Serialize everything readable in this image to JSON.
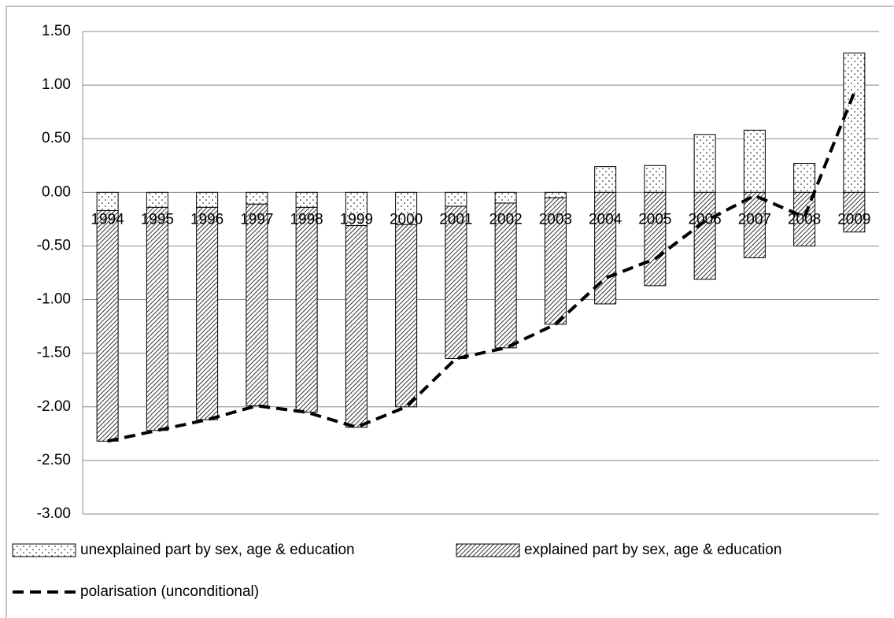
{
  "chart_data": {
    "type": "bar",
    "categories": [
      "1994",
      "1995",
      "1996",
      "1997",
      "1998",
      "1999",
      "2000",
      "2001",
      "2002",
      "2003",
      "2004",
      "2005",
      "2006",
      "2007",
      "2008",
      "2009"
    ],
    "series": [
      {
        "name": "unexplained part by sex, age & education",
        "type": "bar",
        "pattern": "dots",
        "color": "#000000",
        "values": [
          -0.17,
          -0.14,
          -0.14,
          -0.11,
          -0.14,
          -0.31,
          -0.3,
          -0.13,
          -0.1,
          -0.05,
          0.24,
          0.25,
          0.54,
          0.58,
          0.27,
          1.3
        ]
      },
      {
        "name": "explained part by sex, age & education",
        "type": "bar",
        "pattern": "hatch",
        "color": "#000000",
        "values": [
          -2.15,
          -2.08,
          -1.98,
          -1.88,
          -1.91,
          -1.88,
          -1.7,
          -1.42,
          -1.35,
          -1.18,
          -1.04,
          -0.87,
          -0.81,
          -0.61,
          -0.5,
          -0.37
        ]
      },
      {
        "name": "polarisation (unconditional)",
        "type": "line",
        "dashed": true,
        "color": "#000000",
        "values": [
          -2.32,
          -2.22,
          -2.12,
          -1.99,
          -2.05,
          -2.19,
          -2.0,
          -1.55,
          -1.45,
          -1.23,
          -0.8,
          -0.62,
          -0.27,
          -0.03,
          -0.23,
          0.93
        ]
      }
    ],
    "ylim": [
      -3,
      1.5
    ],
    "yticks": [
      {
        "value": 1.5,
        "label": "1.50"
      },
      {
        "value": 1,
        "label": "1.00"
      },
      {
        "value": 0.5,
        "label": "0.50"
      },
      {
        "value": 0,
        "label": "0.00"
      },
      {
        "value": -0.5,
        "label": "-0.50"
      },
      {
        "value": -1,
        "label": "-1.00"
      },
      {
        "value": -1.5,
        "label": "-1.50"
      },
      {
        "value": -2,
        "label": "-2.00"
      },
      {
        "value": -2.5,
        "label": "-2.50"
      },
      {
        "value": -3,
        "label": "-3.00"
      }
    ],
    "grid": true,
    "legend": "bottom"
  }
}
